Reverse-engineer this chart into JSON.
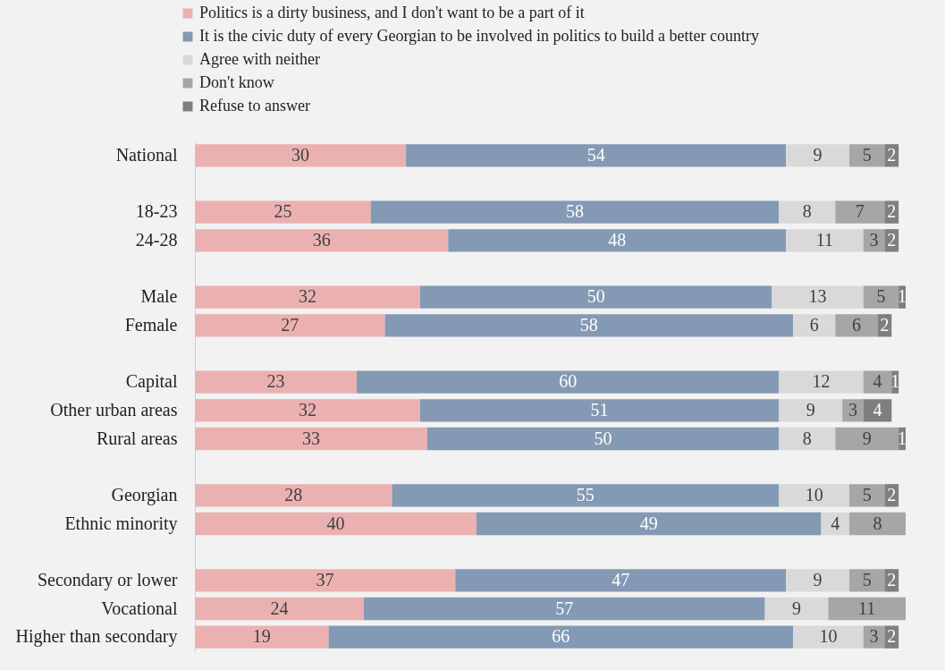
{
  "chart_data": {
    "type": "bar",
    "orientation": "horizontal",
    "stacked": true,
    "data_labels": true,
    "legend": "top left",
    "grid": false,
    "categories": [
      "National",
      null,
      "18-23",
      "24-28",
      null,
      "Male",
      "Female",
      null,
      "Capital",
      "Other urban areas",
      "Rural areas",
      null,
      "Georgian",
      "Ethnic minority",
      null,
      "Secondary or lower",
      "Vocational",
      "Higher than secondary"
    ],
    "series": [
      {
        "name": "Politics is a dirty business, and I don't want to be a part of it",
        "color": "#ebb1b1",
        "values": [
          30,
          null,
          25,
          36,
          null,
          32,
          27,
          null,
          23,
          32,
          33,
          null,
          28,
          40,
          null,
          37,
          24,
          19
        ]
      },
      {
        "name": "It is the civic duty of every Georgian to be involved in politics to build a better country",
        "color": "#8499b3",
        "values": [
          54,
          null,
          58,
          48,
          null,
          50,
          58,
          null,
          60,
          51,
          50,
          null,
          55,
          49,
          null,
          47,
          57,
          66
        ]
      },
      {
        "name": "Agree with neither",
        "color": "#d9d9d9",
        "values": [
          9,
          null,
          8,
          11,
          null,
          13,
          6,
          null,
          12,
          9,
          8,
          null,
          10,
          4,
          null,
          9,
          9,
          10
        ]
      },
      {
        "name": "Don't know",
        "color": "#a6a6a6",
        "values": [
          5,
          null,
          7,
          3,
          null,
          5,
          6,
          null,
          4,
          3,
          9,
          null,
          5,
          8,
          null,
          5,
          11,
          3
        ]
      },
      {
        "name": "Refuse to answer",
        "color": "#7f7f7f",
        "values": [
          2,
          null,
          2,
          2,
          null,
          1,
          2,
          null,
          1,
          4,
          1,
          null,
          2,
          null,
          null,
          2,
          null,
          2
        ]
      }
    ]
  }
}
